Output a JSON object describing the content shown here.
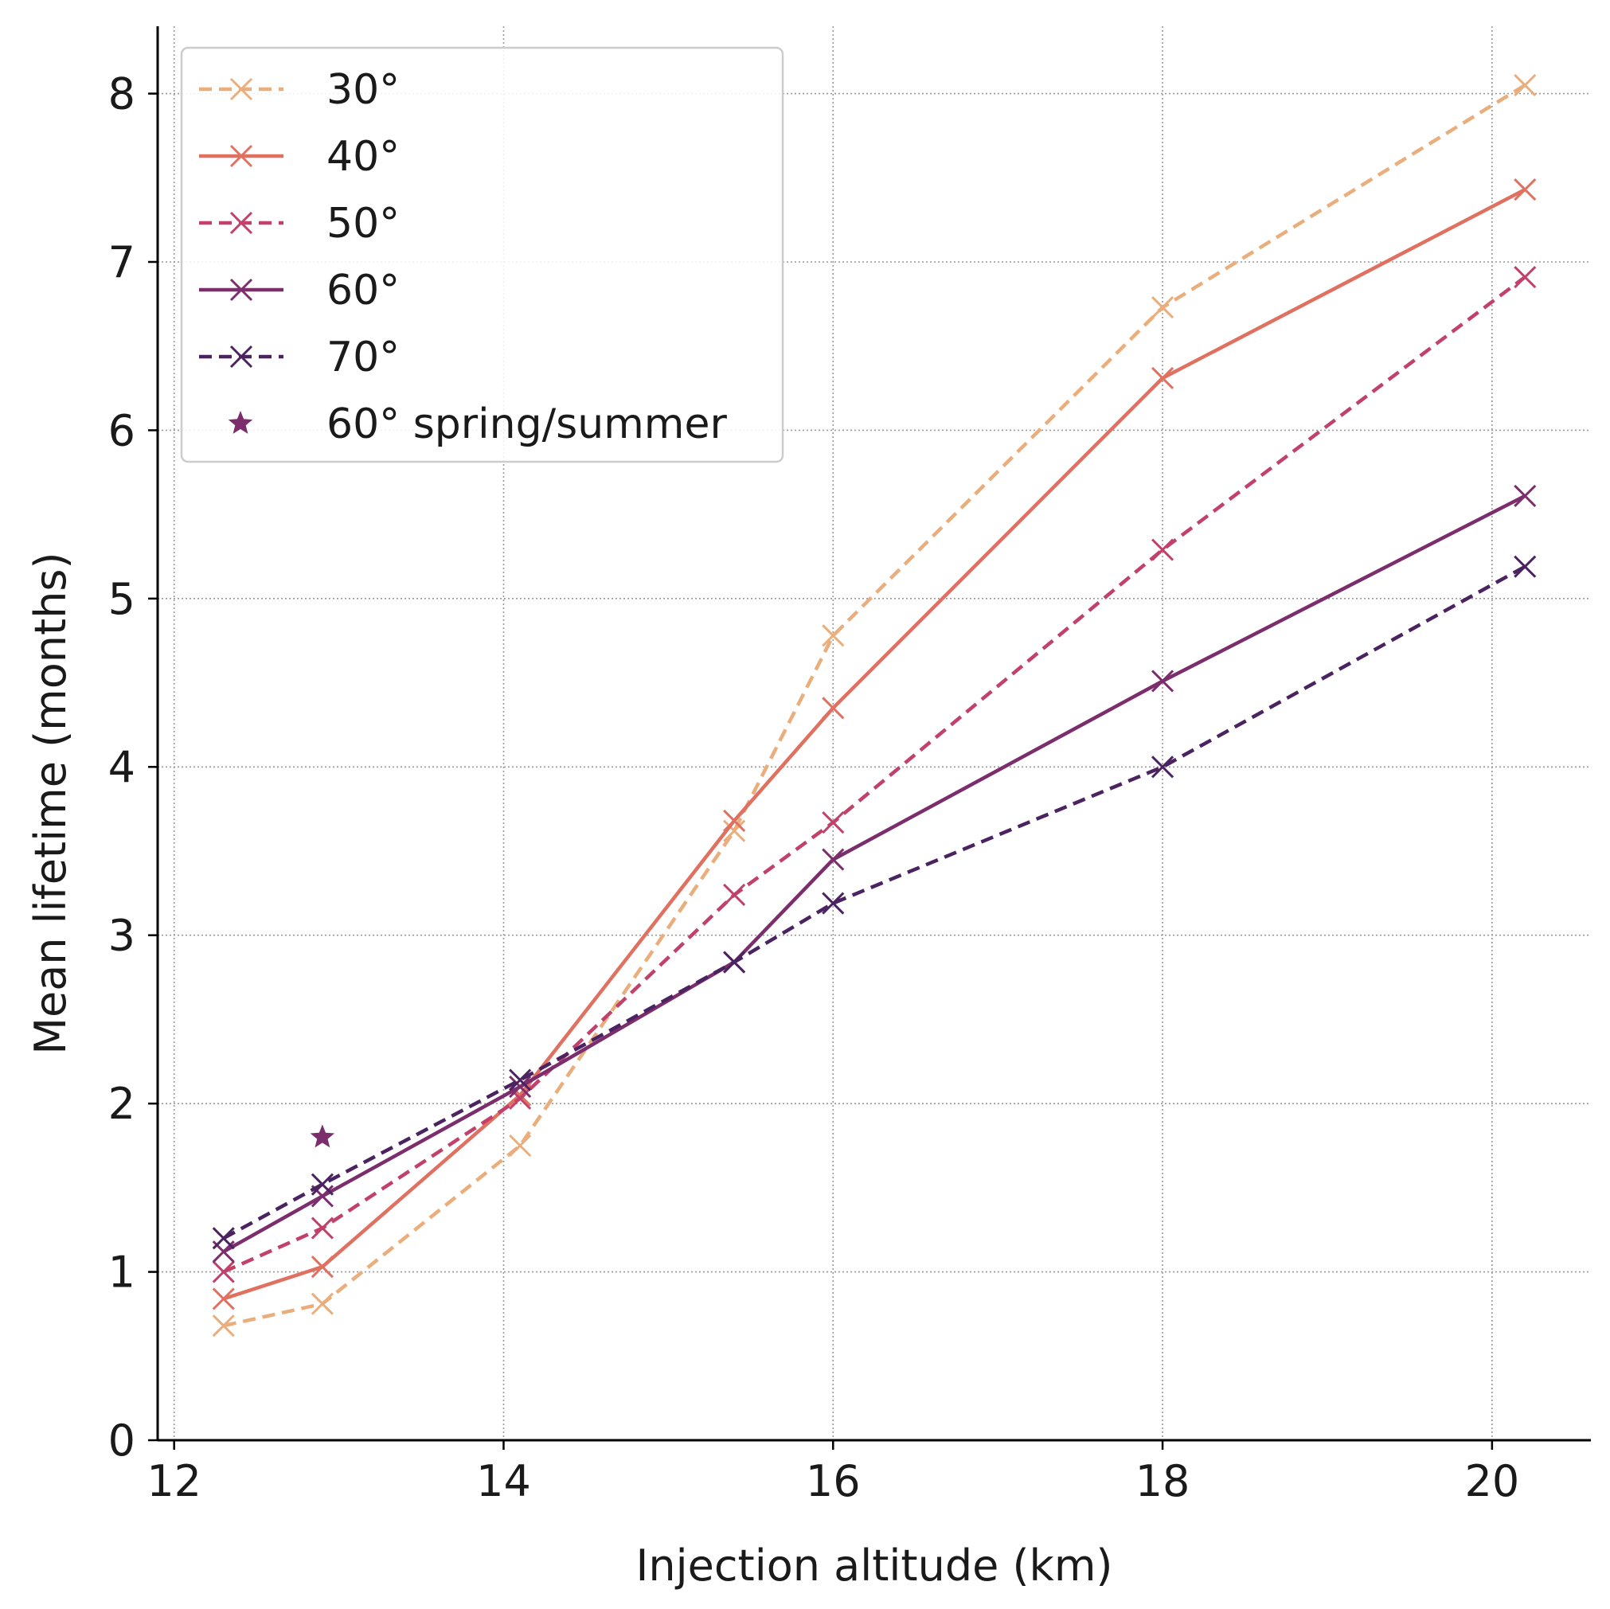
{
  "chart_data": {
    "type": "line",
    "xlabel": "Injection altitude (km)",
    "ylabel": "Mean lifetime (months)",
    "xlim": [
      11.9,
      20.6
    ],
    "ylim": [
      0,
      8.4
    ],
    "xticks": [
      12,
      14,
      16,
      18,
      20
    ],
    "yticks": [
      0,
      1,
      2,
      3,
      4,
      5,
      6,
      7,
      8
    ],
    "grid": true,
    "legend_position": "top-left",
    "series": [
      {
        "name": "30°",
        "color": "#eaae7c",
        "linestyle": "dashed",
        "marker": "x",
        "x": [
          12.3,
          12.9,
          14.1,
          15.4,
          16.0,
          18.0,
          20.2
        ],
        "y": [
          0.68,
          0.81,
          1.75,
          3.62,
          4.78,
          6.73,
          8.05
        ]
      },
      {
        "name": "40°",
        "color": "#e07060",
        "linestyle": "solid",
        "marker": "x",
        "x": [
          12.3,
          12.9,
          14.1,
          15.4,
          16.0,
          18.0,
          20.2
        ],
        "y": [
          0.84,
          1.03,
          2.05,
          3.68,
          4.35,
          6.31,
          7.43
        ]
      },
      {
        "name": "50°",
        "color": "#c2416b",
        "linestyle": "dashed",
        "marker": "x",
        "x": [
          12.3,
          12.9,
          14.1,
          15.4,
          16.0,
          18.0,
          20.2
        ],
        "y": [
          1.0,
          1.26,
          2.03,
          3.24,
          3.67,
          5.29,
          6.91
        ]
      },
      {
        "name": "60°",
        "color": "#7c2d6c",
        "linestyle": "solid",
        "marker": "x",
        "x": [
          12.3,
          12.9,
          14.1,
          15.4,
          16.0,
          18.0,
          20.2
        ],
        "y": [
          1.12,
          1.45,
          2.1,
          2.84,
          3.45,
          4.51,
          5.61
        ]
      },
      {
        "name": "70°",
        "color": "#4a2360",
        "linestyle": "dashed",
        "marker": "x",
        "x": [
          12.3,
          12.9,
          14.1,
          15.4,
          16.0,
          18.0,
          20.2
        ],
        "y": [
          1.2,
          1.52,
          2.14,
          2.84,
          3.19,
          4.0,
          5.19
        ]
      },
      {
        "name": "60° spring/summer",
        "color": "#7c2d6c",
        "linestyle": "none",
        "marker": "star",
        "x": [
          12.9
        ],
        "y": [
          1.8
        ]
      }
    ]
  }
}
